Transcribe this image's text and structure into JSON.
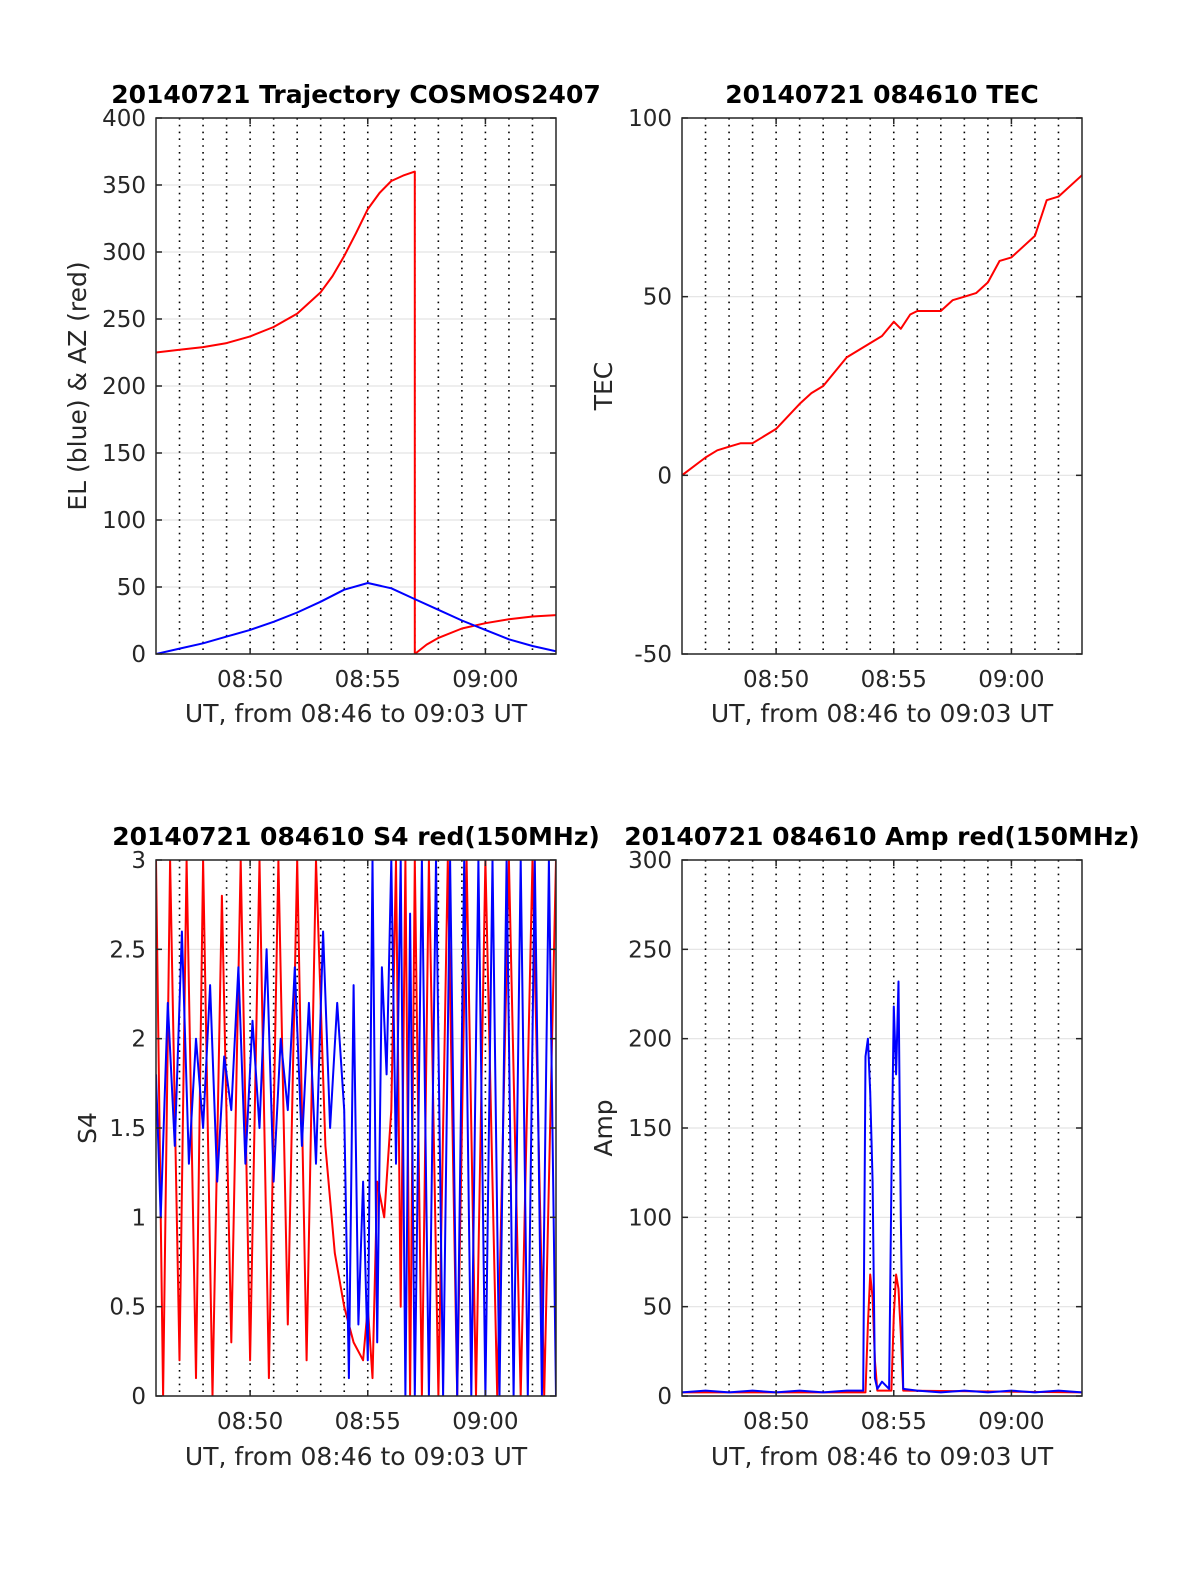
{
  "chart_data": [
    {
      "type": "line",
      "title": "20140721 Trajectory COSMOS2407",
      "xlabel": "UT, from 08:46 to 09:03 UT",
      "ylabel": "EL (blue) & AZ (red)",
      "xlim": [
        0,
        17
      ],
      "ylim": [
        0,
        400
      ],
      "xticks": [
        {
          "v": 4,
          "label": "08:50"
        },
        {
          "v": 9,
          "label": "08:55"
        },
        {
          "v": 14,
          "label": "09:00"
        }
      ],
      "yticks": [
        {
          "v": 0,
          "label": "0"
        },
        {
          "v": 50,
          "label": "50"
        },
        {
          "v": 100,
          "label": "100"
        },
        {
          "v": 150,
          "label": "150"
        },
        {
          "v": 200,
          "label": "200"
        },
        {
          "v": 250,
          "label": "250"
        },
        {
          "v": 300,
          "label": "300"
        },
        {
          "v": 350,
          "label": "350"
        },
        {
          "v": 400,
          "label": "400"
        }
      ],
      "grid": {
        "x_dotted_every": 1,
        "y_lines": true
      },
      "series": [
        {
          "color": "#ff0000",
          "x": [
            0,
            1,
            2,
            3,
            4,
            5,
            6,
            7,
            7.5,
            8,
            8.5,
            9,
            9.5,
            10,
            10.5,
            11,
            11,
            11.5,
            12,
            13,
            14,
            15,
            16,
            17
          ],
          "y": [
            225,
            227,
            229,
            232,
            237,
            244,
            254,
            270,
            282,
            297,
            314,
            332,
            344,
            353,
            357,
            360,
            0,
            7,
            12,
            19,
            23,
            26,
            28,
            29
          ]
        },
        {
          "color": "#0000ff",
          "x": [
            0,
            1,
            2,
            3,
            4,
            5,
            6,
            7,
            8,
            9,
            10,
            11,
            12,
            13,
            14,
            15,
            16,
            17
          ],
          "y": [
            0,
            4,
            8,
            13,
            18,
            24,
            31,
            39,
            48,
            53,
            49,
            41,
            33,
            25,
            18,
            11,
            6,
            2
          ]
        }
      ]
    },
    {
      "type": "line",
      "title": "20140721 084610 TEC",
      "xlabel": "UT, from 08:46 to 09:03 UT",
      "ylabel": "TEC",
      "xlim": [
        0,
        17
      ],
      "ylim": [
        -50,
        100
      ],
      "xticks": [
        {
          "v": 4,
          "label": "08:50"
        },
        {
          "v": 9,
          "label": "08:55"
        },
        {
          "v": 14,
          "label": "09:00"
        }
      ],
      "yticks": [
        {
          "v": -50,
          "label": "-50"
        },
        {
          "v": 0,
          "label": "0"
        },
        {
          "v": 50,
          "label": "50"
        },
        {
          "v": 100,
          "label": "100"
        }
      ],
      "grid": {
        "x_dotted_every": 1,
        "y_lines": true
      },
      "series": [
        {
          "color": "#ff0000",
          "x": [
            0,
            1,
            1.5,
            2,
            2.5,
            3,
            4,
            5,
            5.5,
            6,
            7,
            8,
            8.5,
            9,
            9.3,
            9.7,
            10,
            11,
            11.5,
            12,
            12.5,
            13,
            13.5,
            14,
            15,
            15.5,
            16,
            17
          ],
          "y": [
            0,
            5,
            7,
            8,
            9,
            9,
            13,
            20,
            23,
            25,
            33,
            37,
            39,
            43,
            41,
            45,
            46,
            46,
            49,
            50,
            51,
            54,
            60,
            61,
            67,
            77,
            78,
            84
          ]
        }
      ]
    },
    {
      "type": "line",
      "title": "20140721 084610 S4 red(150MHz)",
      "xlabel": "UT, from 08:46 to 09:03 UT",
      "ylabel": "S4",
      "xlim": [
        0,
        17
      ],
      "ylim": [
        0,
        3
      ],
      "xticks": [
        {
          "v": 4,
          "label": "08:50"
        },
        {
          "v": 9,
          "label": "08:55"
        },
        {
          "v": 14,
          "label": "09:00"
        }
      ],
      "yticks": [
        {
          "v": 0,
          "label": "0"
        },
        {
          "v": 0.5,
          "label": "0.5"
        },
        {
          "v": 1,
          "label": "1"
        },
        {
          "v": 1.5,
          "label": "1.5"
        },
        {
          "v": 2,
          "label": "2"
        },
        {
          "v": 2.5,
          "label": "2.5"
        },
        {
          "v": 3,
          "label": "3"
        }
      ],
      "grid": {
        "x_dotted_every": 1,
        "y_lines": true
      },
      "series": [
        {
          "color": "#ff0000",
          "x": [
            0,
            0.3,
            0.6,
            1,
            1.3,
            1.7,
            2,
            2.4,
            2.8,
            3.2,
            3.6,
            4,
            4.4,
            4.8,
            5.2,
            5.6,
            6,
            6.4,
            6.8,
            7.2,
            7.6,
            8,
            8.4,
            8.8,
            9,
            9.2,
            9.4,
            9.7,
            10,
            10.2,
            10.4,
            10.6,
            10.8,
            11,
            11.3,
            11.6,
            12,
            12.4,
            12.8,
            13.2,
            13.6,
            14,
            14.5,
            15,
            15.5,
            16,
            16.5,
            17
          ],
          "y": [
            3,
            0,
            3,
            0.2,
            3,
            0.1,
            3,
            0,
            2.8,
            0.3,
            3,
            0.2,
            3,
            0.1,
            3,
            0.4,
            3,
            0.2,
            3,
            1.4,
            0.8,
            0.5,
            0.3,
            0.2,
            0.5,
            0.1,
            1.2,
            1.0,
            1.6,
            3,
            0.5,
            3,
            0,
            3,
            0,
            3,
            0,
            3,
            0,
            3,
            0,
            3,
            0,
            3,
            0,
            3,
            0,
            3
          ]
        },
        {
          "color": "#0000ff",
          "x": [
            0,
            0.2,
            0.5,
            0.8,
            1.1,
            1.4,
            1.7,
            2,
            2.3,
            2.6,
            2.9,
            3.2,
            3.5,
            3.8,
            4.1,
            4.4,
            4.7,
            5,
            5.3,
            5.6,
            5.9,
            6.2,
            6.5,
            6.8,
            7.1,
            7.4,
            7.7,
            8,
            8.2,
            8.4,
            8.6,
            8.8,
            9,
            9.2,
            9.4,
            9.6,
            9.8,
            10,
            10.2,
            10.4,
            10.6,
            10.8,
            11,
            11.3,
            11.6,
            11.9,
            12.2,
            12.5,
            12.8,
            13.1,
            13.4,
            13.7,
            14,
            14.3,
            14.6,
            14.9,
            15.2,
            15.5,
            15.8,
            16.1,
            16.4,
            16.7,
            17
          ],
          "y": [
            1.8,
            1.0,
            2.2,
            1.4,
            2.6,
            1.3,
            2.0,
            1.5,
            2.3,
            1.2,
            1.9,
            1.6,
            2.4,
            1.3,
            2.1,
            1.5,
            2.5,
            1.2,
            2.0,
            1.6,
            2.4,
            1.4,
            2.2,
            1.3,
            2.6,
            1.5,
            2.2,
            1.6,
            0.1,
            2.3,
            0.4,
            1.2,
            0.2,
            3,
            0.3,
            2.4,
            1.8,
            3,
            1.3,
            3,
            0,
            2.7,
            0,
            3,
            0,
            3,
            0,
            3,
            0,
            3,
            0,
            3,
            0,
            3,
            0,
            3,
            0,
            3,
            0,
            3,
            0,
            3,
            0
          ]
        }
      ]
    },
    {
      "type": "line",
      "title": "20140721 084610 Amp red(150MHz)",
      "xlabel": "UT, from 08:46 to 09:03 UT",
      "ylabel": "Amp",
      "xlim": [
        0,
        17
      ],
      "ylim": [
        0,
        300
      ],
      "xticks": [
        {
          "v": 4,
          "label": "08:50"
        },
        {
          "v": 9,
          "label": "08:55"
        },
        {
          "v": 14,
          "label": "09:00"
        }
      ],
      "yticks": [
        {
          "v": 0,
          "label": "0"
        },
        {
          "v": 50,
          "label": "50"
        },
        {
          "v": 100,
          "label": "100"
        },
        {
          "v": 150,
          "label": "150"
        },
        {
          "v": 200,
          "label": "200"
        },
        {
          "v": 250,
          "label": "250"
        },
        {
          "v": 300,
          "label": "300"
        }
      ],
      "grid": {
        "x_dotted_every": 1,
        "y_lines": true
      },
      "series": [
        {
          "color": "#ff0000",
          "x": [
            0,
            7.8,
            7.9,
            8.0,
            8.1,
            8.2,
            8.3,
            8.9,
            9.0,
            9.1,
            9.2,
            9.3,
            9.4,
            17
          ],
          "y": [
            2,
            2,
            40,
            68,
            55,
            20,
            3,
            3,
            45,
            68,
            60,
            35,
            3,
            2
          ]
        },
        {
          "color": "#0000ff",
          "x": [
            0,
            1,
            2,
            3,
            4,
            5,
            6,
            7,
            7.7,
            7.8,
            7.9,
            8.0,
            8.1,
            8.2,
            8.3,
            8.5,
            8.8,
            8.9,
            9.0,
            9.1,
            9.2,
            9.3,
            9.4,
            10,
            11,
            12,
            13,
            14,
            15,
            16,
            17
          ],
          "y": [
            2,
            3,
            2,
            3,
            2,
            3,
            2,
            3,
            3,
            190,
            200,
            170,
            120,
            10,
            4,
            8,
            4,
            120,
            218,
            180,
            232,
            100,
            4,
            3,
            2,
            3,
            2,
            3,
            2,
            3,
            2
          ]
        }
      ]
    }
  ]
}
